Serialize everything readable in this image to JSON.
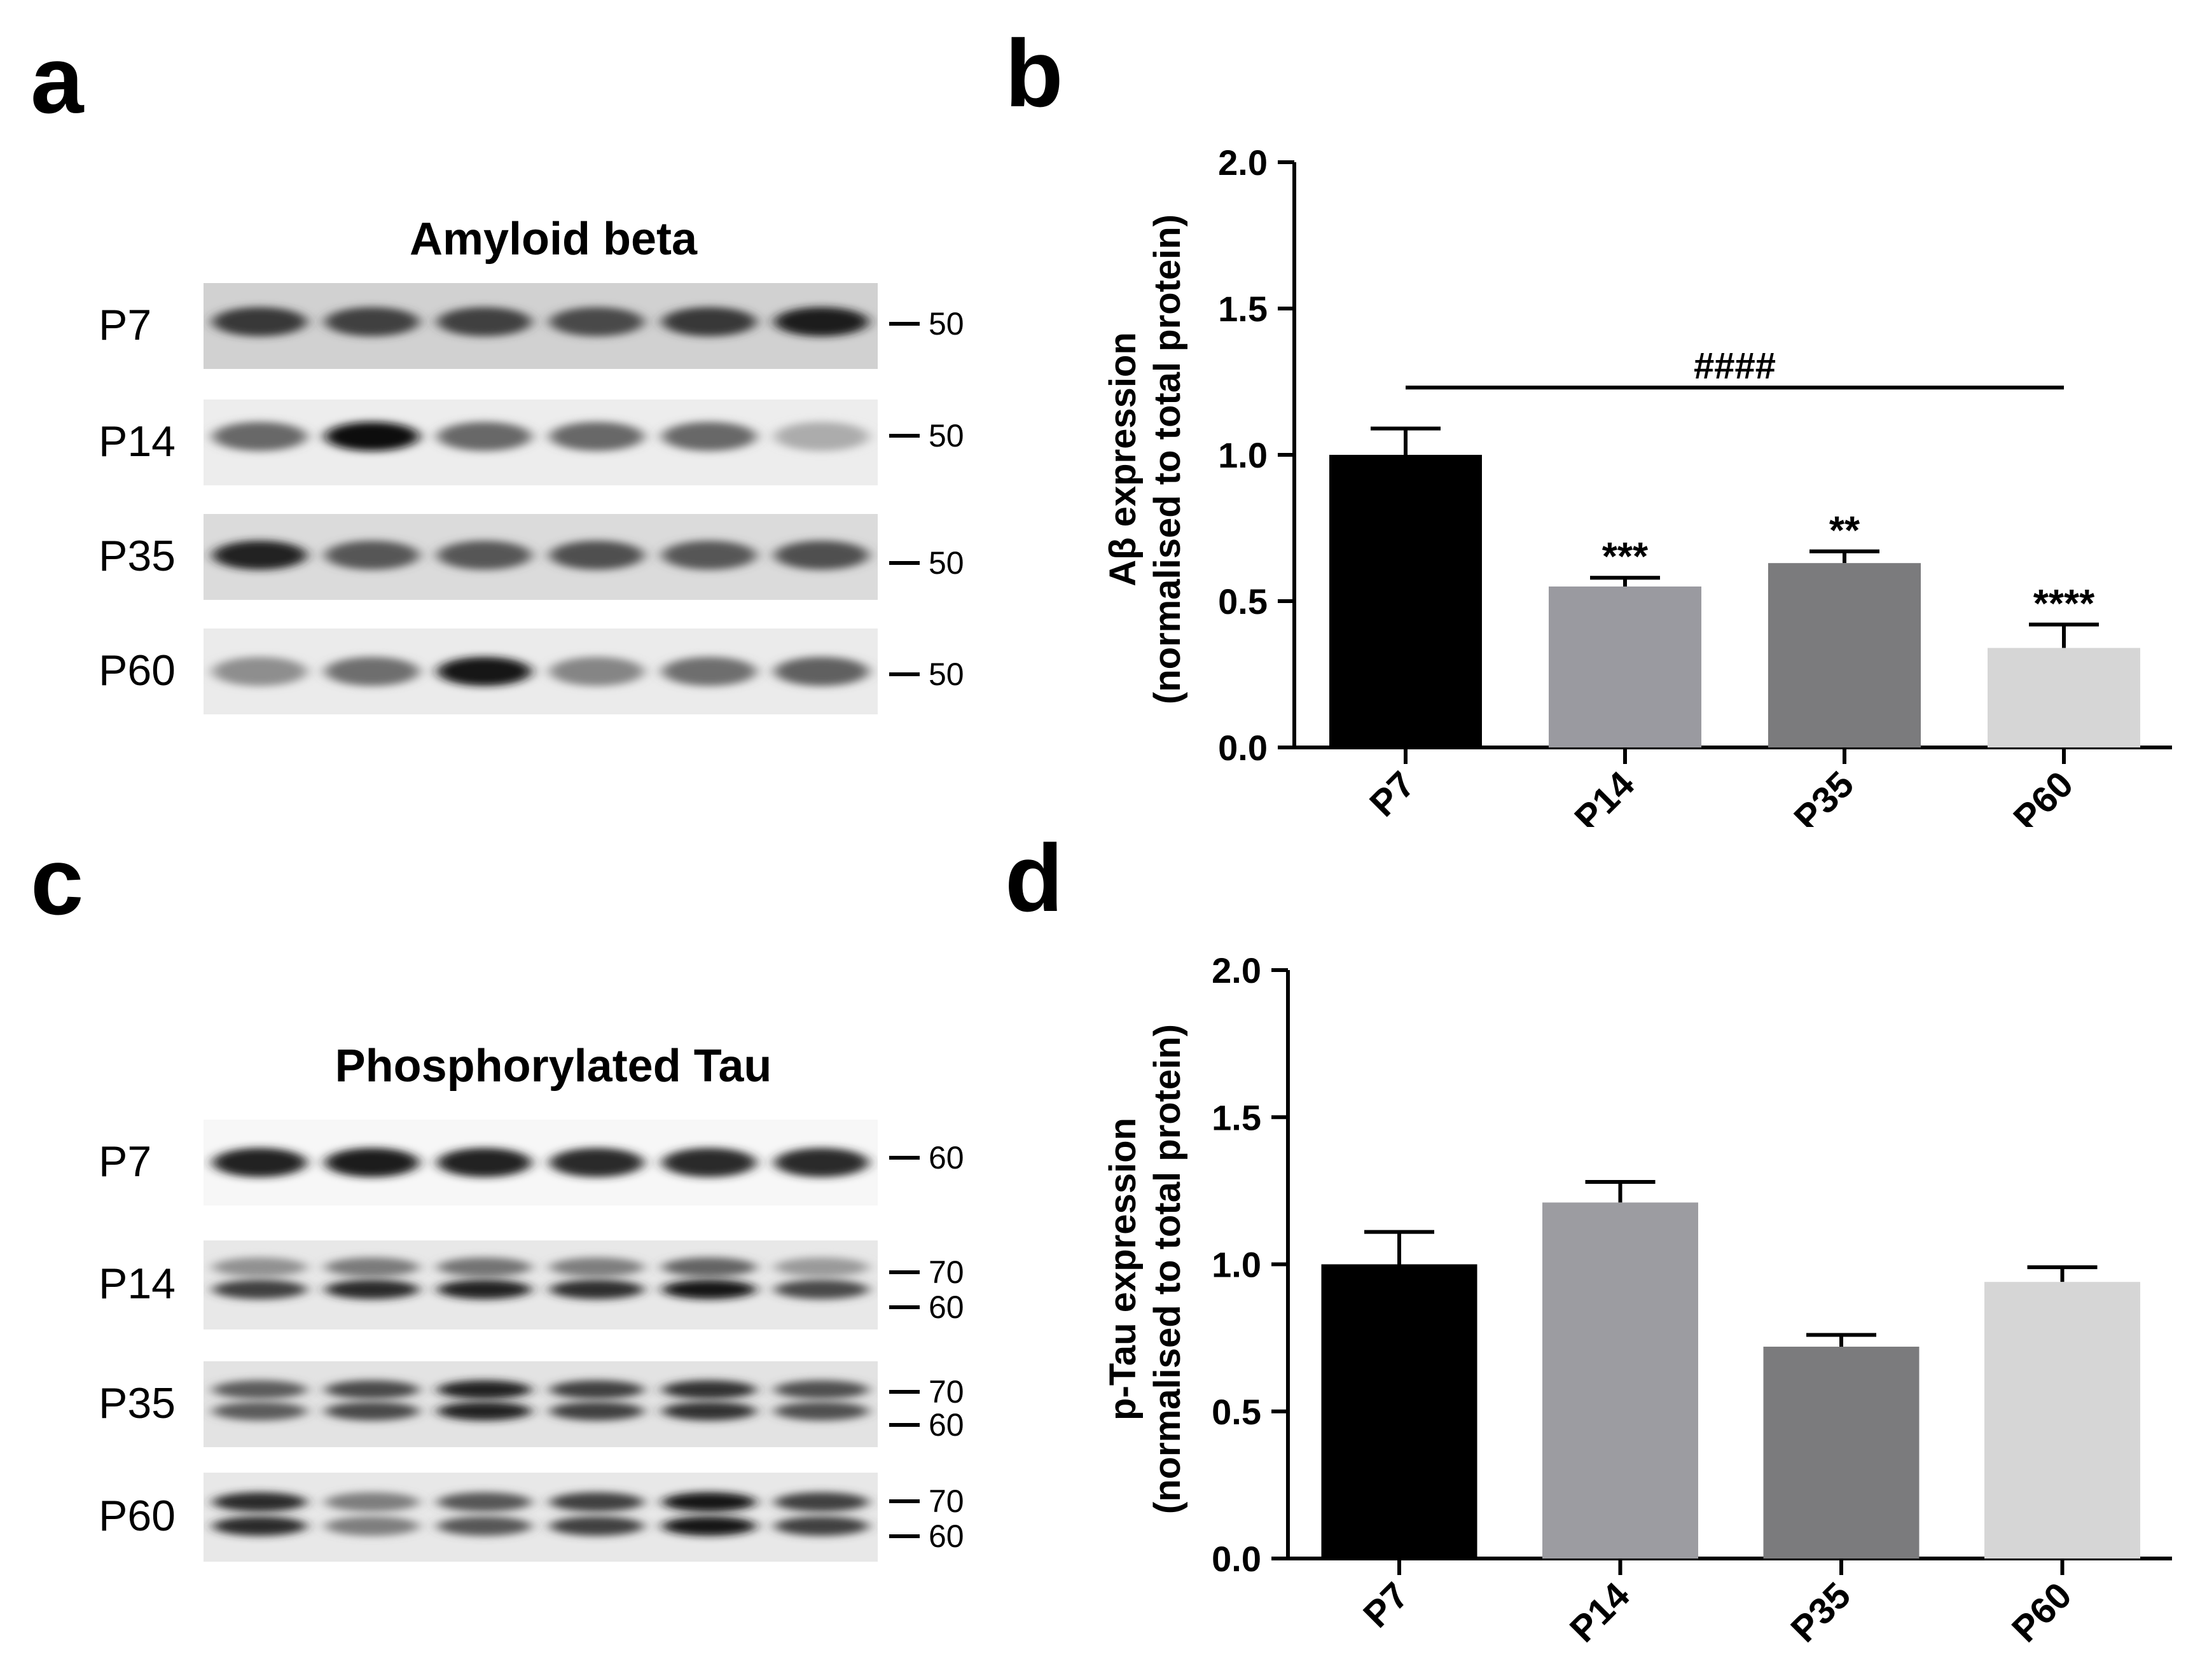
{
  "panels": {
    "a": "a",
    "b": "b",
    "c": "c",
    "d": "d"
  },
  "blot_a": {
    "title": "Amyloid beta",
    "rows": [
      {
        "label": "P7",
        "markers": [
          "50"
        ],
        "intensity": [
          0.75,
          0.72,
          0.72,
          0.68,
          0.75,
          0.88
        ],
        "double": false,
        "bg": 0.82
      },
      {
        "label": "P14",
        "markers": [
          "50"
        ],
        "intensity": [
          0.55,
          0.95,
          0.55,
          0.55,
          0.55,
          0.25
        ],
        "double": false,
        "bg": 0.93
      },
      {
        "label": "P35",
        "markers": [
          "50"
        ],
        "intensity": [
          0.85,
          0.62,
          0.62,
          0.65,
          0.62,
          0.65
        ],
        "double": false,
        "bg": 0.86
      },
      {
        "label": "P60",
        "markers": [
          "50"
        ],
        "intensity": [
          0.38,
          0.52,
          0.9,
          0.42,
          0.52,
          0.58
        ],
        "double": false,
        "bg": 0.92
      }
    ]
  },
  "blot_c": {
    "title": "Phosphorylated Tau",
    "rows": [
      {
        "label": "P7",
        "markers": [
          "60"
        ],
        "intensity": [
          0.85,
          0.88,
          0.85,
          0.82,
          0.82,
          0.82
        ],
        "double": false,
        "bg": 0.97
      },
      {
        "label": "P14",
        "markers": [
          "70",
          "60"
        ],
        "intensity": [
          0.72,
          0.82,
          0.85,
          0.8,
          0.92,
          0.68
        ],
        "double": false,
        "bg": 0.91
      },
      {
        "label": "P35",
        "markers": [
          "70",
          "60"
        ],
        "intensity": [
          0.6,
          0.68,
          0.85,
          0.72,
          0.78,
          0.65
        ],
        "double": true,
        "bg": 0.89
      },
      {
        "label": "P60",
        "markers": [
          "70",
          "60"
        ],
        "intensity": [
          0.82,
          0.45,
          0.62,
          0.72,
          0.92,
          0.72
        ],
        "double": true,
        "bg": 0.91
      }
    ]
  },
  "chart_data": [
    {
      "type": "bar",
      "categories": [
        "P7",
        "P14",
        "P35",
        "P60"
      ],
      "values": [
        1.0,
        0.55,
        0.63,
        0.34
      ],
      "errors": [
        0.09,
        0.03,
        0.04,
        0.08
      ],
      "colors": [
        "#000000",
        "#9a9aa0",
        "#7b7b7d",
        "#d6d6d6"
      ],
      "significance": [
        "",
        "***",
        "**",
        "****"
      ],
      "bracket_label": "####",
      "bracket": [
        "P7",
        "P60"
      ],
      "bracket_y": 1.23,
      "ylabel_line1": "Aβ expression",
      "ylabel_line2": "(normalised to total protein)",
      "ylim": [
        0,
        2.0
      ],
      "yticks": [
        "0.0",
        "0.5",
        "1.0",
        "1.5",
        "2.0"
      ],
      "ytick_values": [
        0,
        0.5,
        1.0,
        1.5,
        2.0
      ]
    },
    {
      "type": "bar",
      "categories": [
        "P7",
        "P14",
        "P35",
        "P60"
      ],
      "values": [
        1.0,
        1.21,
        0.72,
        0.94
      ],
      "errors": [
        0.11,
        0.07,
        0.04,
        0.05
      ],
      "colors": [
        "#000000",
        "#9c9ca1",
        "#7b7b7d",
        "#d6d6d6"
      ],
      "significance": [
        "",
        "",
        "",
        ""
      ],
      "ylabel_line1": "p-Tau expression",
      "ylabel_line2": "(normalised to total protein)",
      "ylim": [
        0,
        2.0
      ],
      "yticks": [
        "0.0",
        "0.5",
        "1.0",
        "1.5",
        "2.0"
      ],
      "ytick_values": [
        0,
        0.5,
        1.0,
        1.5,
        2.0
      ]
    }
  ]
}
